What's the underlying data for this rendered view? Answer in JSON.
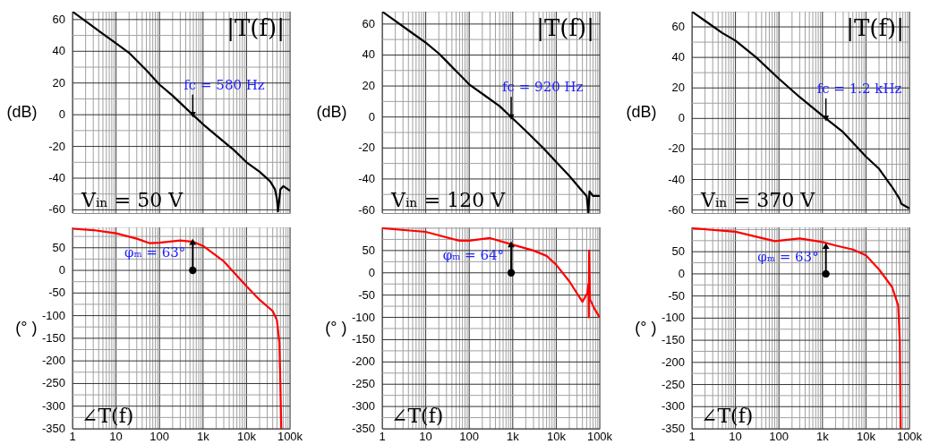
{
  "chart_data": [
    {
      "type": "line",
      "log": "x",
      "grid": true,
      "tick_labels": "y",
      "ylabel": "(dB)",
      "xlim": [
        1,
        100000
      ],
      "ylim": [
        -62,
        65
      ],
      "xticks": [
        {
          "value": 1,
          "label": null
        },
        {
          "value": 2,
          "label": null
        },
        {
          "value": 3,
          "label": null
        },
        {
          "value": 4,
          "label": null
        },
        {
          "value": 5,
          "label": null
        },
        {
          "value": 6,
          "label": null
        },
        {
          "value": 7,
          "label": null
        },
        {
          "value": 8,
          "label": null
        },
        {
          "value": 9,
          "label": null
        },
        {
          "value": 10,
          "label": null
        },
        {
          "value": 20,
          "label": null
        },
        {
          "value": 30,
          "label": null
        },
        {
          "value": 40,
          "label": null
        },
        {
          "value": 50,
          "label": null
        },
        {
          "value": 60,
          "label": null
        },
        {
          "value": 70,
          "label": null
        },
        {
          "value": 80,
          "label": null
        },
        {
          "value": 90,
          "label": null
        },
        {
          "value": 100,
          "label": null
        },
        {
          "value": 200,
          "label": null
        },
        {
          "value": 300,
          "label": null
        },
        {
          "value": 400,
          "label": null
        },
        {
          "value": 500,
          "label": null
        },
        {
          "value": 600,
          "label": null
        },
        {
          "value": 700,
          "label": null
        },
        {
          "value": 800,
          "label": null
        },
        {
          "value": 900,
          "label": null
        },
        {
          "value": 1000,
          "label": null
        },
        {
          "value": 2000,
          "label": null
        },
        {
          "value": 3000,
          "label": null
        },
        {
          "value": 4000,
          "label": null
        },
        {
          "value": 5000,
          "label": null
        },
        {
          "value": 6000,
          "label": null
        },
        {
          "value": 7000,
          "label": null
        },
        {
          "value": 8000,
          "label": null
        },
        {
          "value": 9000,
          "label": null
        },
        {
          "value": 10000,
          "label": null
        },
        {
          "value": 20000,
          "label": null
        },
        {
          "value": 30000,
          "label": null
        },
        {
          "value": 40000,
          "label": null
        },
        {
          "value": 50000,
          "label": null
        },
        {
          "value": 60000,
          "label": null
        },
        {
          "value": 70000,
          "label": null
        },
        {
          "value": 80000,
          "label": null
        },
        {
          "value": 90000,
          "label": null
        },
        {
          "value": 100000,
          "label": null
        }
      ],
      "yticks": [
        -60,
        {
          "value": -50,
          "label": null
        },
        -40,
        {
          "value": -30,
          "label": null
        },
        -20,
        {
          "value": -10,
          "label": null
        },
        0,
        {
          "value": 10,
          "label": null
        },
        20,
        {
          "value": 30,
          "label": null
        },
        40,
        {
          "value": 50,
          "label": null
        },
        60
      ],
      "x": [
        1,
        2,
        5,
        10,
        20,
        50,
        100,
        200,
        580,
        1000,
        2000,
        5000,
        10000,
        20000,
        35000,
        45000,
        50000,
        53000,
        56000,
        60000,
        70000,
        100000
      ],
      "series": [
        {
          "color": "#000000",
          "values": [
            65,
            59,
            51,
            45,
            39,
            28,
            19,
            12,
            0,
            -6,
            -13,
            -22,
            -30,
            -36,
            -42,
            -47,
            -53,
            -61,
            -55,
            -47,
            -45,
            -48
          ]
        }
      ],
      "annotations": [
        "|T(f)|",
        {
          "text": "fc = 580 Hz",
          "x": 580,
          "y": 0
        },
        "Vᵢₙ = 50 V"
      ]
    },
    {
      "type": "line",
      "log": "x",
      "grid": true,
      "tick_labels": "y",
      "ylabel": "(dB)",
      "xlim": [
        1,
        100000
      ],
      "ylim": [
        -62,
        68
      ],
      "xticks": [
        {
          "value": 1,
          "label": null
        },
        {
          "value": 2,
          "label": null
        },
        {
          "value": 3,
          "label": null
        },
        {
          "value": 4,
          "label": null
        },
        {
          "value": 5,
          "label": null
        },
        {
          "value": 6,
          "label": null
        },
        {
          "value": 7,
          "label": null
        },
        {
          "value": 8,
          "label": null
        },
        {
          "value": 9,
          "label": null
        },
        {
          "value": 10,
          "label": null
        },
        {
          "value": 20,
          "label": null
        },
        {
          "value": 30,
          "label": null
        },
        {
          "value": 40,
          "label": null
        },
        {
          "value": 50,
          "label": null
        },
        {
          "value": 60,
          "label": null
        },
        {
          "value": 70,
          "label": null
        },
        {
          "value": 80,
          "label": null
        },
        {
          "value": 90,
          "label": null
        },
        {
          "value": 100,
          "label": null
        },
        {
          "value": 200,
          "label": null
        },
        {
          "value": 300,
          "label": null
        },
        {
          "value": 400,
          "label": null
        },
        {
          "value": 500,
          "label": null
        },
        {
          "value": 600,
          "label": null
        },
        {
          "value": 700,
          "label": null
        },
        {
          "value": 800,
          "label": null
        },
        {
          "value": 900,
          "label": null
        },
        {
          "value": 1000,
          "label": null
        },
        {
          "value": 2000,
          "label": null
        },
        {
          "value": 3000,
          "label": null
        },
        {
          "value": 4000,
          "label": null
        },
        {
          "value": 5000,
          "label": null
        },
        {
          "value": 6000,
          "label": null
        },
        {
          "value": 7000,
          "label": null
        },
        {
          "value": 8000,
          "label": null
        },
        {
          "value": 9000,
          "label": null
        },
        {
          "value": 10000,
          "label": null
        },
        {
          "value": 20000,
          "label": null
        },
        {
          "value": 30000,
          "label": null
        },
        {
          "value": 40000,
          "label": null
        },
        {
          "value": 50000,
          "label": null
        },
        {
          "value": 60000,
          "label": null
        },
        {
          "value": 70000,
          "label": null
        },
        {
          "value": 80000,
          "label": null
        },
        {
          "value": 90000,
          "label": null
        },
        {
          "value": 100000,
          "label": null
        }
      ],
      "yticks": [
        -60,
        {
          "value": -50,
          "label": null
        },
        -40,
        {
          "value": -30,
          "label": null
        },
        -20,
        {
          "value": -10,
          "label": null
        },
        0,
        {
          "value": 10,
          "label": null
        },
        20,
        {
          "value": 30,
          "label": null
        },
        40,
        {
          "value": 50,
          "label": null
        },
        60
      ],
      "x": [
        1,
        2,
        5,
        10,
        20,
        30,
        100,
        200,
        500,
        920,
        2000,
        5000,
        10000,
        20000,
        40000,
        50000,
        55000,
        58000,
        70000,
        100000
      ],
      "series": [
        {
          "color": "#000000",
          "values": [
            68,
            62,
            54,
            48,
            41,
            36,
            21,
            15,
            7,
            0,
            -9,
            -20,
            -29,
            -38,
            -48,
            -51,
            -62,
            -48,
            -51,
            -51
          ]
        }
      ],
      "annotations": [
        "|T(f)|",
        {
          "text": "fc = 920 Hz",
          "x": 920,
          "y": 0
        },
        "Vᵢₙ = 120 V"
      ]
    },
    {
      "type": "line",
      "log": "x",
      "grid": true,
      "tick_labels": "y",
      "ylabel": "(dB)",
      "xlim": [
        1,
        100000
      ],
      "ylim": [
        -62,
        70
      ],
      "xticks": [
        {
          "value": 1,
          "label": null
        },
        {
          "value": 2,
          "label": null
        },
        {
          "value": 3,
          "label": null
        },
        {
          "value": 4,
          "label": null
        },
        {
          "value": 5,
          "label": null
        },
        {
          "value": 6,
          "label": null
        },
        {
          "value": 7,
          "label": null
        },
        {
          "value": 8,
          "label": null
        },
        {
          "value": 9,
          "label": null
        },
        {
          "value": 10,
          "label": null
        },
        {
          "value": 20,
          "label": null
        },
        {
          "value": 30,
          "label": null
        },
        {
          "value": 40,
          "label": null
        },
        {
          "value": 50,
          "label": null
        },
        {
          "value": 60,
          "label": null
        },
        {
          "value": 70,
          "label": null
        },
        {
          "value": 80,
          "label": null
        },
        {
          "value": 90,
          "label": null
        },
        {
          "value": 100,
          "label": null
        },
        {
          "value": 200,
          "label": null
        },
        {
          "value": 300,
          "label": null
        },
        {
          "value": 400,
          "label": null
        },
        {
          "value": 500,
          "label": null
        },
        {
          "value": 600,
          "label": null
        },
        {
          "value": 700,
          "label": null
        },
        {
          "value": 800,
          "label": null
        },
        {
          "value": 900,
          "label": null
        },
        {
          "value": 1000,
          "label": null
        },
        {
          "value": 2000,
          "label": null
        },
        {
          "value": 3000,
          "label": null
        },
        {
          "value": 4000,
          "label": null
        },
        {
          "value": 5000,
          "label": null
        },
        {
          "value": 6000,
          "label": null
        },
        {
          "value": 7000,
          "label": null
        },
        {
          "value": 8000,
          "label": null
        },
        {
          "value": 9000,
          "label": null
        },
        {
          "value": 10000,
          "label": null
        },
        {
          "value": 20000,
          "label": null
        },
        {
          "value": 30000,
          "label": null
        },
        {
          "value": 40000,
          "label": null
        },
        {
          "value": 50000,
          "label": null
        },
        {
          "value": 60000,
          "label": null
        },
        {
          "value": 70000,
          "label": null
        },
        {
          "value": 80000,
          "label": null
        },
        {
          "value": 90000,
          "label": null
        },
        {
          "value": 100000,
          "label": null
        }
      ],
      "yticks": [
        -60,
        {
          "value": -50,
          "label": null
        },
        -40,
        {
          "value": -30,
          "label": null
        },
        -20,
        {
          "value": -10,
          "label": null
        },
        0,
        {
          "value": 10,
          "label": null
        },
        20,
        {
          "value": 30,
          "label": null
        },
        40,
        {
          "value": 50,
          "label": null
        },
        60
      ],
      "x": [
        1,
        2,
        5,
        10,
        30,
        100,
        300,
        1200,
        3000,
        10000,
        20000,
        40000,
        60000,
        65000,
        100000
      ],
      "series": [
        {
          "color": "#000000",
          "values": [
            70,
            64,
            56,
            51,
            40,
            26,
            14,
            0,
            -9,
            -25,
            -33,
            -45,
            -53,
            -56,
            -59
          ]
        }
      ],
      "annotations": [
        "|T(f)|",
        {
          "text": "fc = 1.2 kHz",
          "x": 1200,
          "y": 0
        },
        "Vᵢₙ = 370 V"
      ]
    },
    {
      "type": "line",
      "log": "x",
      "grid": true,
      "ylabel": "(° )",
      "xlim": [
        1,
        100000
      ],
      "ylim": [
        -350,
        95
      ],
      "xticks": [
        1,
        {
          "value": 2,
          "label": null
        },
        {
          "value": 3,
          "label": null
        },
        {
          "value": 4,
          "label": null
        },
        {
          "value": 5,
          "label": null
        },
        {
          "value": 6,
          "label": null
        },
        {
          "value": 7,
          "label": null
        },
        {
          "value": 8,
          "label": null
        },
        {
          "value": 9,
          "label": null
        },
        10,
        {
          "value": 20,
          "label": null
        },
        {
          "value": 30,
          "label": null
        },
        {
          "value": 40,
          "label": null
        },
        {
          "value": 50,
          "label": null
        },
        {
          "value": 60,
          "label": null
        },
        {
          "value": 70,
          "label": null
        },
        {
          "value": 80,
          "label": null
        },
        {
          "value": 90,
          "label": null
        },
        100,
        {
          "value": 200,
          "label": null
        },
        {
          "value": 300,
          "label": null
        },
        {
          "value": 400,
          "label": null
        },
        {
          "value": 500,
          "label": null
        },
        {
          "value": 600,
          "label": null
        },
        {
          "value": 700,
          "label": null
        },
        {
          "value": 800,
          "label": null
        },
        {
          "value": 900,
          "label": null
        },
        {
          "value": 1000,
          "label": "1k"
        },
        {
          "value": 2000,
          "label": null
        },
        {
          "value": 3000,
          "label": null
        },
        {
          "value": 4000,
          "label": null
        },
        {
          "value": 5000,
          "label": null
        },
        {
          "value": 6000,
          "label": null
        },
        {
          "value": 7000,
          "label": null
        },
        {
          "value": 8000,
          "label": null
        },
        {
          "value": 9000,
          "label": null
        },
        {
          "value": 10000,
          "label": "10k"
        },
        {
          "value": 20000,
          "label": null
        },
        {
          "value": 30000,
          "label": null
        },
        {
          "value": 40000,
          "label": null
        },
        {
          "value": 50000,
          "label": null
        },
        {
          "value": 60000,
          "label": null
        },
        {
          "value": 70000,
          "label": null
        },
        {
          "value": 80000,
          "label": null
        },
        {
          "value": 90000,
          "label": null
        },
        {
          "value": 100000,
          "label": "100k"
        }
      ],
      "yticks": [
        -350,
        {
          "value": -325,
          "label": null
        },
        -300,
        {
          "value": -275,
          "label": null
        },
        -250,
        {
          "value": -225,
          "label": null
        },
        -200,
        {
          "value": -175,
          "label": null
        },
        -150,
        {
          "value": -125,
          "label": null
        },
        -100,
        {
          "value": -75,
          "label": null
        },
        -50,
        {
          "value": -25,
          "label": null
        },
        0,
        {
          "value": 25,
          "label": null
        },
        50,
        {
          "value": 75,
          "label": null
        }
      ],
      "x": [
        1,
        3,
        10,
        30,
        60,
        100,
        300,
        600,
        1000,
        3000,
        10000,
        20000,
        40000,
        50000,
        57000,
        60000,
        63000
      ],
      "series": [
        {
          "color": "#ff0000",
          "values": [
            92,
            89,
            82,
            70,
            60,
            61,
            66,
            63,
            54,
            20,
            -35,
            -65,
            -90,
            -110,
            -160,
            -250,
            -350
          ]
        }
      ],
      "annotations": [
        {
          "text": "φₘ = 63°",
          "x": 580,
          "y": 63
        },
        "∠T(f)"
      ]
    },
    {
      "type": "line",
      "log": "x",
      "grid": true,
      "ylabel": "(° )",
      "xlim": [
        1,
        100000
      ],
      "ylim": [
        -350,
        102
      ],
      "xticks": [
        1,
        {
          "value": 2,
          "label": null
        },
        {
          "value": 3,
          "label": null
        },
        {
          "value": 4,
          "label": null
        },
        {
          "value": 5,
          "label": null
        },
        {
          "value": 6,
          "label": null
        },
        {
          "value": 7,
          "label": null
        },
        {
          "value": 8,
          "label": null
        },
        {
          "value": 9,
          "label": null
        },
        10,
        {
          "value": 20,
          "label": null
        },
        {
          "value": 30,
          "label": null
        },
        {
          "value": 40,
          "label": null
        },
        {
          "value": 50,
          "label": null
        },
        {
          "value": 60,
          "label": null
        },
        {
          "value": 70,
          "label": null
        },
        {
          "value": 80,
          "label": null
        },
        {
          "value": 90,
          "label": null
        },
        100,
        {
          "value": 200,
          "label": null
        },
        {
          "value": 300,
          "label": null
        },
        {
          "value": 400,
          "label": null
        },
        {
          "value": 500,
          "label": null
        },
        {
          "value": 600,
          "label": null
        },
        {
          "value": 700,
          "label": null
        },
        {
          "value": 800,
          "label": null
        },
        {
          "value": 900,
          "label": null
        },
        {
          "value": 1000,
          "label": "1k"
        },
        {
          "value": 2000,
          "label": null
        },
        {
          "value": 3000,
          "label": null
        },
        {
          "value": 4000,
          "label": null
        },
        {
          "value": 5000,
          "label": null
        },
        {
          "value": 6000,
          "label": null
        },
        {
          "value": 7000,
          "label": null
        },
        {
          "value": 8000,
          "label": null
        },
        {
          "value": 9000,
          "label": null
        },
        {
          "value": 10000,
          "label": "10k"
        },
        {
          "value": 20000,
          "label": null
        },
        {
          "value": 30000,
          "label": null
        },
        {
          "value": 40000,
          "label": null
        },
        {
          "value": 50000,
          "label": null
        },
        {
          "value": 60000,
          "label": null
        },
        {
          "value": 70000,
          "label": null
        },
        {
          "value": 80000,
          "label": null
        },
        {
          "value": 90000,
          "label": null
        },
        {
          "value": 100000,
          "label": "100k"
        }
      ],
      "yticks": [
        -350,
        {
          "value": -325,
          "label": null
        },
        -300,
        {
          "value": -275,
          "label": null
        },
        -250,
        {
          "value": -225,
          "label": null
        },
        -200,
        {
          "value": -175,
          "label": null
        },
        -150,
        {
          "value": -125,
          "label": null
        },
        -100,
        {
          "value": -75,
          "label": null
        },
        -50,
        {
          "value": -25,
          "label": null
        },
        0,
        {
          "value": 25,
          "label": null
        },
        50,
        {
          "value": 75,
          "label": null
        },
        {
          "value": 100,
          "label": null
        }
      ],
      "x": [
        1,
        10,
        60,
        100,
        300,
        1000,
        3000,
        6000,
        10000,
        20000,
        40000,
        52000,
        55000,
        56000,
        57000,
        60000,
        75000,
        100000
      ],
      "series": [
        {
          "color": "#ff0000",
          "values": [
            100,
            92,
            72,
            72,
            78,
            63,
            50,
            38,
            18,
            -19,
            -65,
            -45,
            -25,
            -100,
            50,
            -60,
            -80,
            -100
          ]
        }
      ],
      "annotations": [
        {
          "text": "φₘ = 64°",
          "x": 920,
          "y": 64
        },
        "∠T(f)"
      ]
    },
    {
      "type": "line",
      "log": "x",
      "grid": true,
      "ylabel": "(° )",
      "xlim": [
        1,
        100000
      ],
      "ylim": [
        -350,
        105
      ],
      "xticks": [
        1,
        {
          "value": 2,
          "label": null
        },
        {
          "value": 3,
          "label": null
        },
        {
          "value": 4,
          "label": null
        },
        {
          "value": 5,
          "label": null
        },
        {
          "value": 6,
          "label": null
        },
        {
          "value": 7,
          "label": null
        },
        {
          "value": 8,
          "label": null
        },
        {
          "value": 9,
          "label": null
        },
        10,
        {
          "value": 20,
          "label": null
        },
        {
          "value": 30,
          "label": null
        },
        {
          "value": 40,
          "label": null
        },
        {
          "value": 50,
          "label": null
        },
        {
          "value": 60,
          "label": null
        },
        {
          "value": 70,
          "label": null
        },
        {
          "value": 80,
          "label": null
        },
        {
          "value": 90,
          "label": null
        },
        100,
        {
          "value": 200,
          "label": null
        },
        {
          "value": 300,
          "label": null
        },
        {
          "value": 400,
          "label": null
        },
        {
          "value": 500,
          "label": null
        },
        {
          "value": 600,
          "label": null
        },
        {
          "value": 700,
          "label": null
        },
        {
          "value": 800,
          "label": null
        },
        {
          "value": 900,
          "label": null
        },
        {
          "value": 1000,
          "label": "1k"
        },
        {
          "value": 2000,
          "label": null
        },
        {
          "value": 3000,
          "label": null
        },
        {
          "value": 4000,
          "label": null
        },
        {
          "value": 5000,
          "label": null
        },
        {
          "value": 6000,
          "label": null
        },
        {
          "value": 7000,
          "label": null
        },
        {
          "value": 8000,
          "label": null
        },
        {
          "value": 9000,
          "label": null
        },
        {
          "value": 10000,
          "label": "10k"
        },
        {
          "value": 20000,
          "label": null
        },
        {
          "value": 30000,
          "label": null
        },
        {
          "value": 40000,
          "label": null
        },
        {
          "value": 50000,
          "label": null
        },
        {
          "value": 60000,
          "label": null
        },
        {
          "value": 70000,
          "label": null
        },
        {
          "value": 80000,
          "label": null
        },
        {
          "value": 90000,
          "label": null
        },
        {
          "value": 100000,
          "label": "100k"
        }
      ],
      "yticks": [
        -350,
        {
          "value": -325,
          "label": null
        },
        -300,
        {
          "value": -275,
          "label": null
        },
        -250,
        {
          "value": -225,
          "label": null
        },
        -200,
        {
          "value": -175,
          "label": null
        },
        -150,
        {
          "value": -125,
          "label": null
        },
        -100,
        {
          "value": -75,
          "label": null
        },
        -50,
        {
          "value": -25,
          "label": null
        },
        0,
        {
          "value": 25,
          "label": null
        },
        50,
        {
          "value": 75,
          "label": null
        },
        {
          "value": 100,
          "label": null
        }
      ],
      "x": [
        1,
        10,
        80,
        300,
        1000,
        2000,
        5000,
        10000,
        20000,
        40000,
        55000,
        60000,
        63000
      ],
      "series": [
        {
          "color": "#ff0000",
          "values": [
            103,
            95,
            74,
            80,
            72,
            64,
            55,
            42,
            10,
            -30,
            -71,
            -150,
            -350
          ]
        }
      ],
      "annotations": [
        {
          "text": "φₘ = 63°",
          "x": 1200,
          "y": 63
        },
        "∠T(f)"
      ]
    }
  ]
}
